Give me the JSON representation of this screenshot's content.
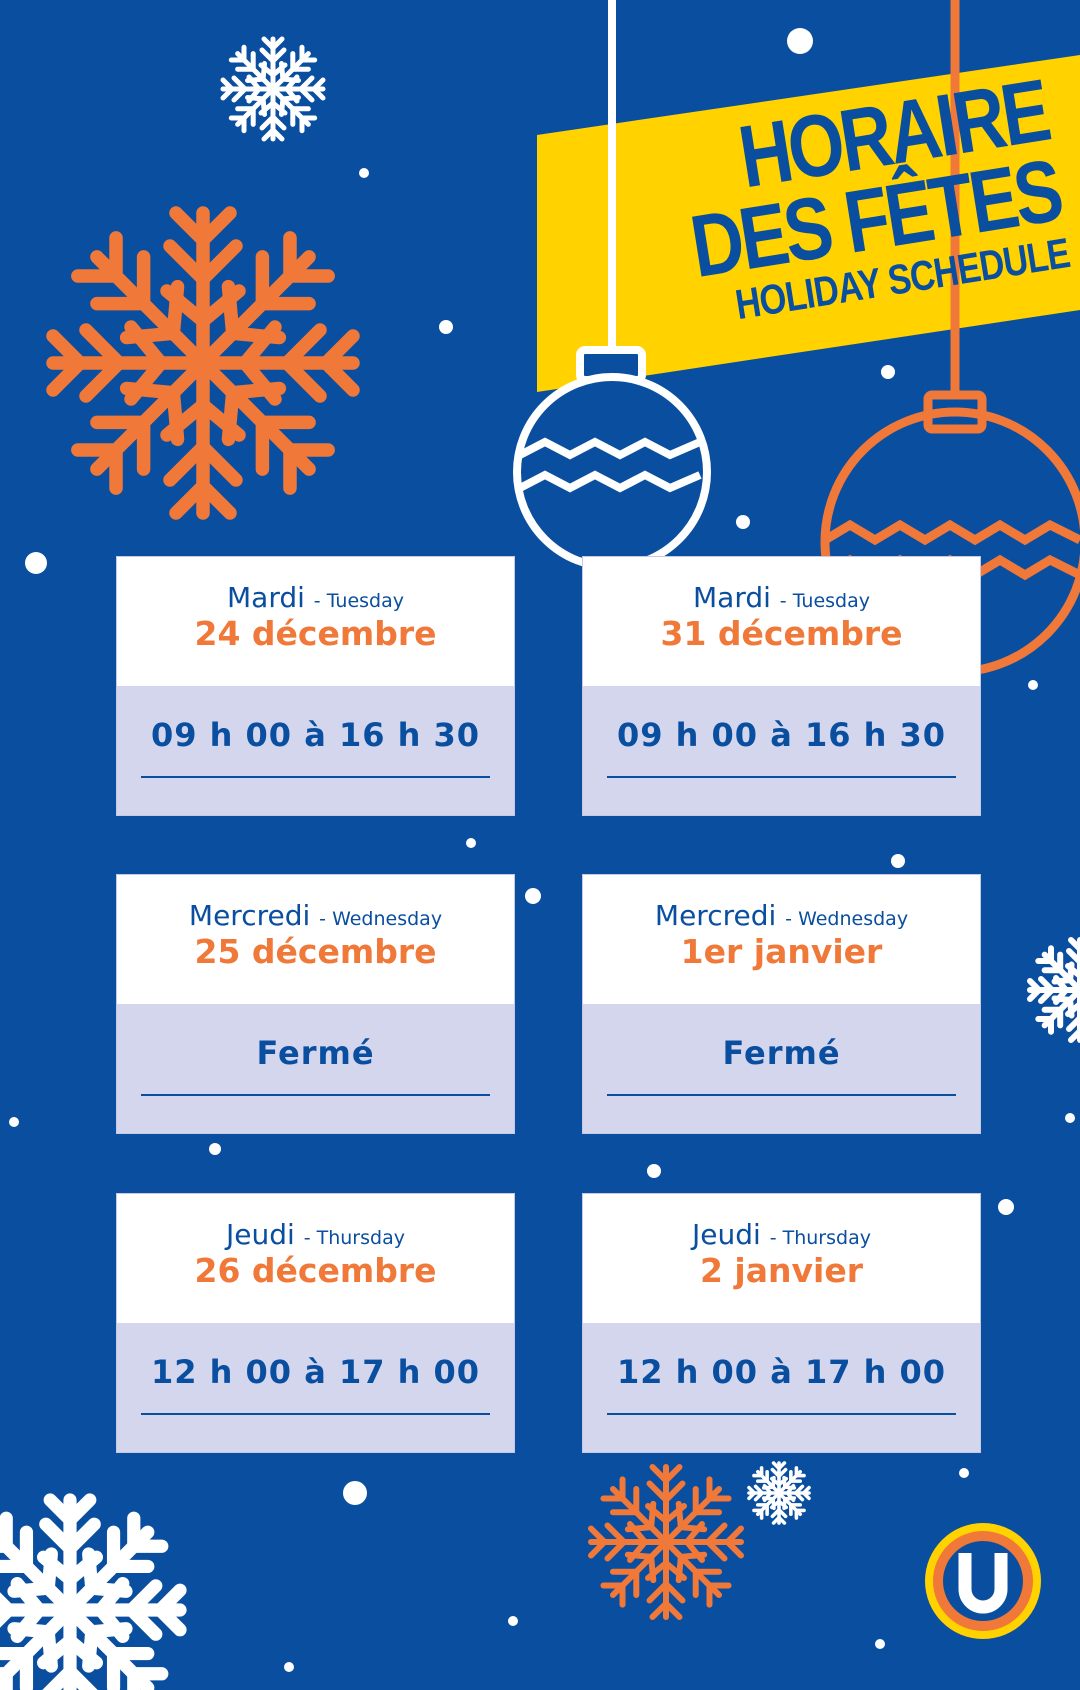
{
  "header": {
    "title_line1": "HORAIRE",
    "title_line2": "DES FÊTES",
    "subtitle": "HOLIDAY SCHEDULE"
  },
  "colors": {
    "background": "#0a4ea0",
    "accent_orange": "#f07838",
    "banner_yellow": "#ffd200",
    "hours_panel": "#d4d6ee"
  },
  "schedule": [
    {
      "day_fr": "Mardi",
      "day_en": "- Tuesday",
      "date": "24 décembre",
      "hours": "09 h 00 à 16 h 30"
    },
    {
      "day_fr": "Mardi",
      "day_en": "- Tuesday",
      "date": "31 décembre",
      "hours": "09 h 00 à 16 h 30"
    },
    {
      "day_fr": "Mercredi",
      "day_en": "- Wednesday",
      "date": "25 décembre",
      "hours": "Fermé"
    },
    {
      "day_fr": "Mercredi",
      "day_en": "- Wednesday",
      "date": "1er janvier",
      "hours": "Fermé"
    },
    {
      "day_fr": "Jeudi",
      "day_en": "- Thursday",
      "date": "26 décembre",
      "hours": "12 h 00 à 17 h 00"
    },
    {
      "day_fr": "Jeudi",
      "day_en": "- Thursday",
      "date": "2 janvier",
      "hours": "12 h 00 à 17 h 00"
    }
  ],
  "logo": {
    "letter": "U"
  }
}
